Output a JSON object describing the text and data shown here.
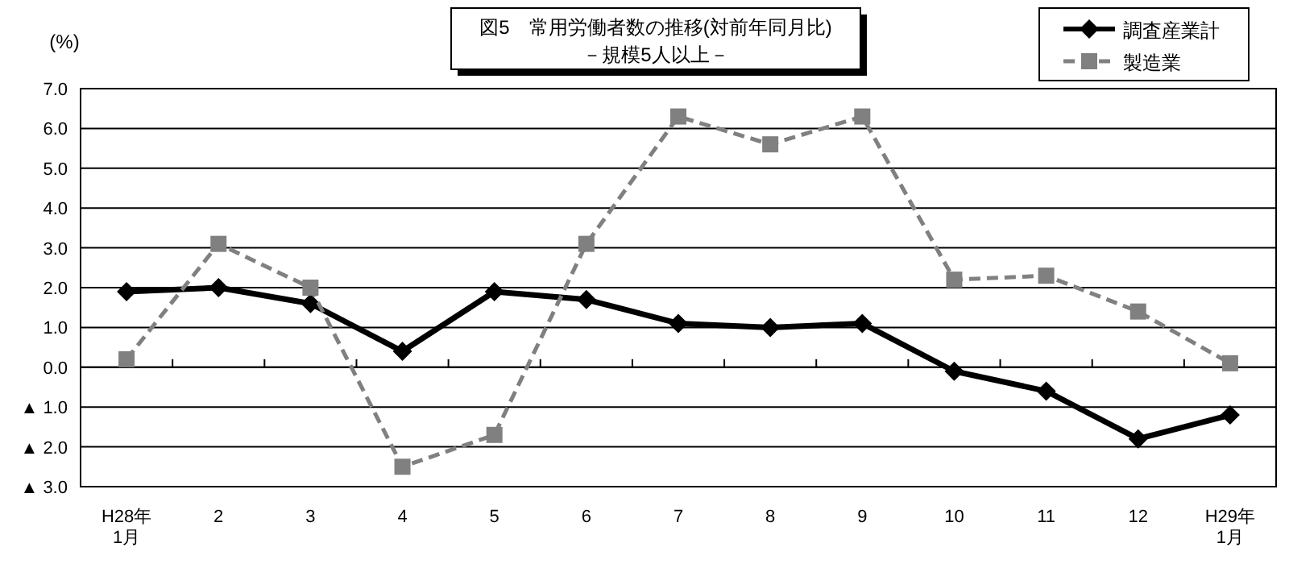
{
  "chart_data": {
    "type": "line",
    "title": "図5　常用労働者数の推移(対前年同月比)",
    "subtitle": "－規模5人以上－",
    "ylabel": "(%)",
    "categories": [
      "H28年\n1月",
      "2",
      "3",
      "4",
      "5",
      "6",
      "7",
      "8",
      "9",
      "10",
      "11",
      "12",
      "H29年\n1月"
    ],
    "series": [
      {
        "name": "調査産業計",
        "color": "#000000",
        "marker": "diamond",
        "line_style": "solid",
        "values": [
          1.9,
          2.0,
          1.6,
          0.4,
          1.9,
          1.7,
          1.1,
          1.0,
          1.1,
          -0.1,
          -0.6,
          -1.8,
          -1.2
        ]
      },
      {
        "name": "製造業",
        "color": "#808080",
        "marker": "square",
        "line_style": "dashed",
        "values": [
          0.2,
          3.1,
          2.0,
          -2.5,
          -1.7,
          3.1,
          6.3,
          5.6,
          6.3,
          2.2,
          2.3,
          1.4,
          0.1
        ]
      }
    ],
    "ylim": [
      -3,
      7
    ],
    "yticks": [
      {
        "value": 7,
        "label": "7.0"
      },
      {
        "value": 6,
        "label": "6.0"
      },
      {
        "value": 5,
        "label": "5.0"
      },
      {
        "value": 4,
        "label": "4.0"
      },
      {
        "value": 3,
        "label": "3.0"
      },
      {
        "value": 2,
        "label": "2.0"
      },
      {
        "value": 1,
        "label": "1.0"
      },
      {
        "value": 0,
        "label": "0.0"
      },
      {
        "value": -1,
        "label": "▲ 1.0"
      },
      {
        "value": -2,
        "label": "▲ 2.0"
      },
      {
        "value": -3,
        "label": "▲ 3.0"
      }
    ],
    "grid": "y",
    "legend": "top right"
  }
}
